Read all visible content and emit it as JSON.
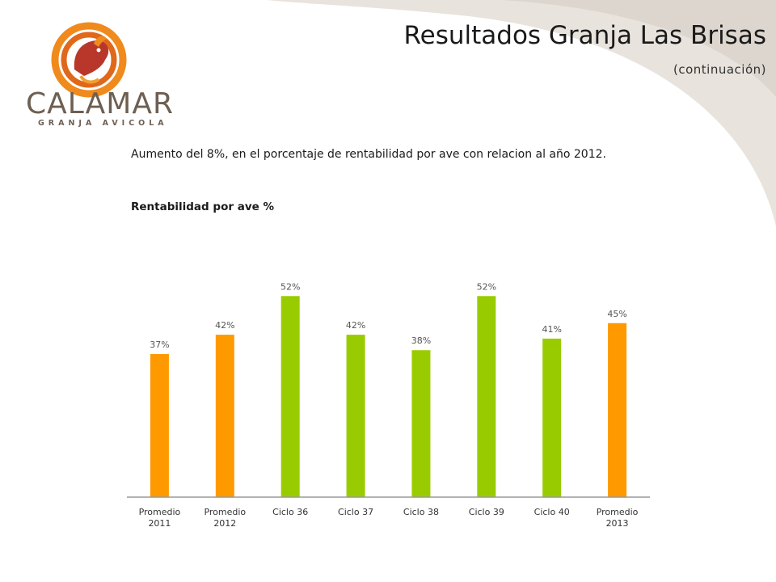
{
  "slide": {
    "title": "Resultados Granja Las Brisas",
    "subtitle": "(continuación)",
    "body_text": "Aumento del 8%, en el porcentaje de rentabilidad por ave con relacion al año 2012.",
    "logo": {
      "word": "CALAMAR",
      "sub": "GRANJA AVICOLA"
    }
  },
  "chart_data": {
    "type": "bar",
    "title": "Rentabilidad por ave %",
    "xlabel": "",
    "ylabel": "",
    "categories": [
      [
        "Promedio",
        "2011"
      ],
      [
        "Promedio",
        "2012"
      ],
      [
        "Ciclo 36"
      ],
      [
        "Ciclo 37"
      ],
      [
        "Ciclo 38"
      ],
      [
        "Ciclo 39"
      ],
      [
        "Ciclo 40"
      ],
      [
        "Promedio",
        "2013"
      ]
    ],
    "values": [
      37,
      42,
      52,
      42,
      38,
      52,
      41,
      45
    ],
    "value_labels": [
      "37%",
      "42%",
      "52%",
      "42%",
      "38%",
      "52%",
      "41%",
      "45%"
    ],
    "bar_colors": [
      "#ff9900",
      "#ff9900",
      "#99cc00",
      "#99cc00",
      "#99cc00",
      "#99cc00",
      "#99cc00",
      "#ff9900"
    ],
    "ylim": [
      0,
      60
    ],
    "grid": false,
    "legend": "none"
  },
  "colors": {
    "average_bar": "#ff9900",
    "cycle_bar": "#99cc00",
    "background_swoosh": "#e8e3dd",
    "logo_brown": "#6e5f53",
    "logo_orange": "#f08a1c",
    "logo_red": "#b8372a"
  }
}
